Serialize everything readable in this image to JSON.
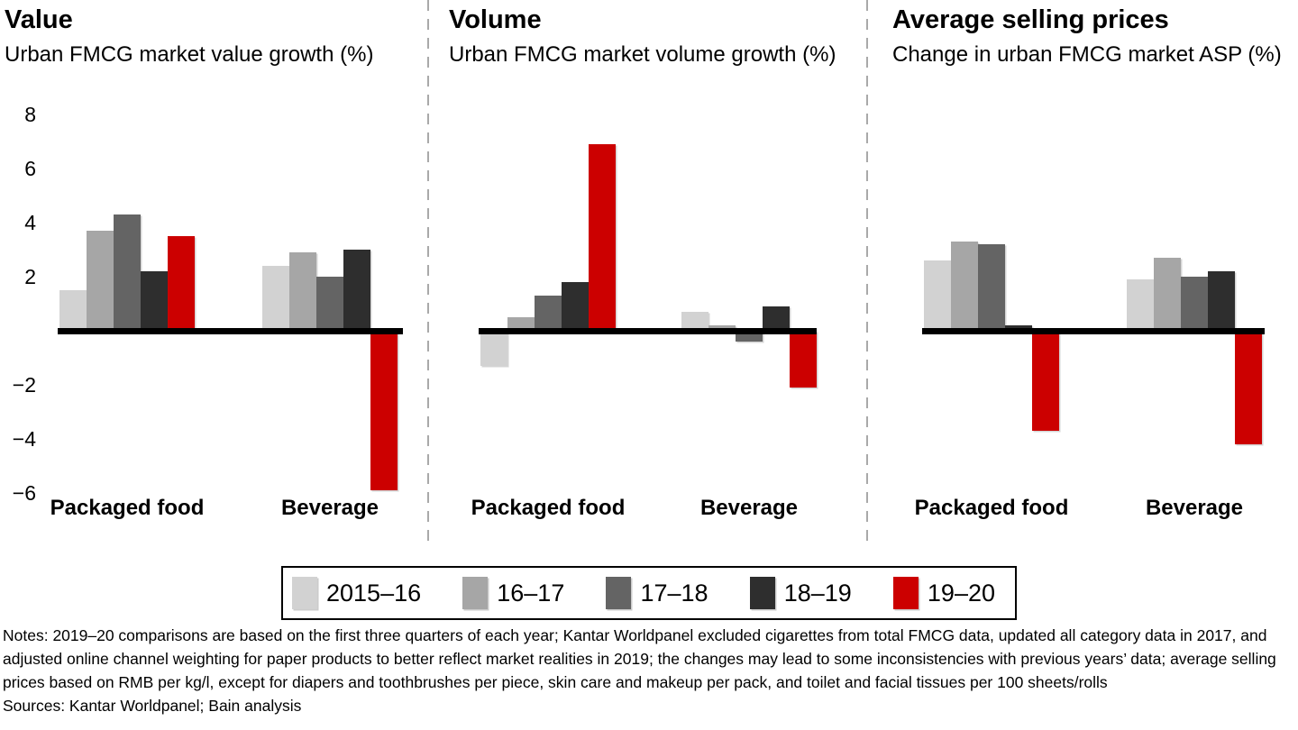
{
  "chart_data": [
    {
      "type": "bar",
      "title": "Value",
      "subtitle": "Urban FMCG market value growth (%)",
      "categories": [
        "Packaged food",
        "Beverage"
      ],
      "series": [
        {
          "name": "2015–16",
          "color": "#d2d2d2",
          "values": [
            1.5,
            2.4
          ]
        },
        {
          "name": "16–17",
          "color": "#a6a6a6",
          "values": [
            3.7,
            2.9
          ]
        },
        {
          "name": "17–18",
          "color": "#646464",
          "values": [
            4.3,
            2.0
          ]
        },
        {
          "name": "18–19",
          "color": "#2e2e2e",
          "values": [
            2.2,
            3.0
          ]
        },
        {
          "name": "19–20",
          "color": "#cc0000",
          "values": [
            3.5,
            -5.9
          ]
        }
      ],
      "yticks": [
        8,
        6,
        4,
        2,
        -2,
        -4,
        -6
      ],
      "ylim": [
        -6.5,
        8.5
      ],
      "grid": false,
      "axis_labels_visible": true,
      "legend_position": "bottom-shared"
    },
    {
      "type": "bar",
      "title": "Volume",
      "subtitle": "Urban FMCG market volume growth (%)",
      "categories": [
        "Packaged food",
        "Beverage"
      ],
      "series": [
        {
          "name": "2015–16",
          "color": "#d2d2d2",
          "values": [
            -1.3,
            0.7
          ]
        },
        {
          "name": "16–17",
          "color": "#a6a6a6",
          "values": [
            0.5,
            0.2
          ]
        },
        {
          "name": "17–18",
          "color": "#646464",
          "values": [
            1.3,
            -0.4
          ]
        },
        {
          "name": "18–19",
          "color": "#2e2e2e",
          "values": [
            1.8,
            0.9
          ]
        },
        {
          "name": "19–20",
          "color": "#cc0000",
          "values": [
            6.9,
            -2.1
          ]
        }
      ],
      "yticks": [],
      "ylim": [
        -6.5,
        8.5
      ],
      "grid": false,
      "axis_labels_visible": false,
      "legend_position": "bottom-shared"
    },
    {
      "type": "bar",
      "title": "Average selling prices",
      "subtitle": "Change in urban FMCG market ASP (%)",
      "categories": [
        "Packaged food",
        "Beverage"
      ],
      "series": [
        {
          "name": "2015–16",
          "color": "#d2d2d2",
          "values": [
            2.6,
            1.9
          ]
        },
        {
          "name": "16–17",
          "color": "#a6a6a6",
          "values": [
            3.3,
            2.7
          ]
        },
        {
          "name": "17–18",
          "color": "#646464",
          "values": [
            3.2,
            2.0
          ]
        },
        {
          "name": "18–19",
          "color": "#2e2e2e",
          "values": [
            0.2,
            2.2
          ]
        },
        {
          "name": "19–20",
          "color": "#cc0000",
          "values": [
            -3.7,
            -4.2
          ]
        }
      ],
      "yticks": [],
      "ylim": [
        -6.5,
        8.5
      ],
      "grid": false,
      "axis_labels_visible": false,
      "legend_position": "bottom-shared"
    }
  ],
  "legend": {
    "entries": [
      {
        "label": "2015–16",
        "color": "#d2d2d2"
      },
      {
        "label": "16–17",
        "color": "#a6a6a6"
      },
      {
        "label": "17–18",
        "color": "#646464"
      },
      {
        "label": "18–19",
        "color": "#2e2e2e"
      },
      {
        "label": "19–20",
        "color": "#cc0000"
      }
    ]
  },
  "footer": {
    "notes": "Notes: 2019–20 comparisons are based on the first three quarters of each year; Kantar Worldpanel excluded cigarettes from total FMCG data, updated all category data in 2017, and adjusted online channel weighting for paper products to better reflect market realities in 2019; the changes may lead to some inconsistencies with previous years’ data; average selling prices based on RMB per kg/l, except for diapers and toothbrushes per piece, skin care and makeup per pack, and toilet and facial tissues per 100 sheets/rolls",
    "sources": "Sources: Kantar Worldpanel; Bain analysis"
  },
  "colors": {
    "bar_red": "#cc0000",
    "axis_line": "#000000",
    "divider": "#a9a9a9",
    "background": "#ffffff"
  }
}
